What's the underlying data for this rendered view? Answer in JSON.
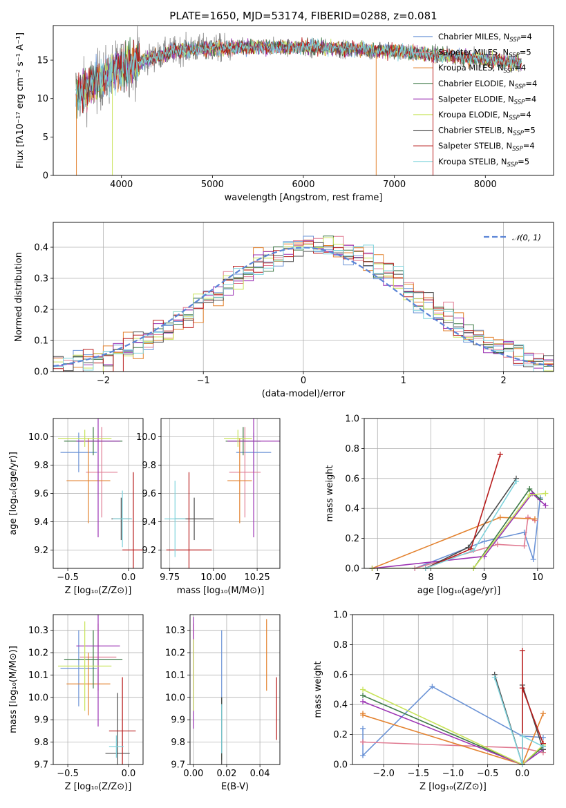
{
  "chart_data": [
    {
      "id": "spectrum",
      "type": "line",
      "title": "PLATE=1650, MJD=53174, FIBERID=0288, z=0.081",
      "xlabel": "wavelength [Angstrom, rest frame]",
      "ylabel": "Flux [fλ10⁻¹⁷ erg cm⁻² s⁻¹ A⁻¹]",
      "xlim": [
        3250,
        8750
      ],
      "ylim": [
        0,
        19.5
      ],
      "xticks": [
        4000,
        5000,
        6000,
        7000,
        8000
      ],
      "yticks": [
        0,
        5,
        10,
        15
      ],
      "grid": false,
      "legend_position": "upper-right",
      "data_range": [
        3500,
        8400
      ],
      "legend": [
        {
          "name": "Chabrier MILES, N",
          "sub": "SSP",
          "sup": "",
          "tail": "=4",
          "color": "#6b93d6"
        },
        {
          "name": "Salpeter MILES, N",
          "sub": "SSP",
          "sup": "",
          "tail": "=5",
          "color": "#e07a91"
        },
        {
          "name": "Kroupa MILES, N",
          "sub": "SSP",
          "sup": "",
          "tail": "=4",
          "color": "#e3822f"
        },
        {
          "name": "Chabrier ELODIE, N",
          "sub": "SSP",
          "sup": "",
          "tail": "=4",
          "color": "#3d7a46"
        },
        {
          "name": "Salpeter ELODIE, N",
          "sub": "SSP",
          "sup": "",
          "tail": "=4",
          "color": "#9b32b3"
        },
        {
          "name": "Kroupa ELODIE, N",
          "sub": "SSP",
          "sup": "",
          "tail": "=4",
          "color": "#c8e35a"
        },
        {
          "name": "Chabrier STELIB, N",
          "sub": "SSP",
          "sup": "",
          "tail": "=5",
          "color": "#4a4a4a"
        },
        {
          "name": "Salpeter STELIB, N",
          "sub": "SSP",
          "sup": "",
          "tail": "=4",
          "color": "#b81c1c"
        },
        {
          "name": "Kroupa STELIB, N",
          "sub": "SSP",
          "sup": "",
          "tail": "=5",
          "color": "#7fd3dc"
        }
      ],
      "observed_color": "#808080"
    },
    {
      "id": "residuals",
      "type": "histogram",
      "xlabel": "(data-model)/error",
      "ylabel": "Normed distribution",
      "xlim": [
        -2.5,
        2.5
      ],
      "ylim": [
        0,
        0.48
      ],
      "xticks": [
        -2,
        -1,
        0,
        1,
        2
      ],
      "yticks": [
        0.0,
        0.1,
        0.2,
        0.3,
        0.4
      ],
      "grid": true,
      "bin_width": 0.1,
      "gaussian": {
        "name": "𝒩(0, 1)",
        "color": "#5b84d6"
      },
      "series_colors": [
        "#6b93d6",
        "#e07a91",
        "#e3822f",
        "#3d7a46",
        "#9b32b3",
        "#c8e35a",
        "#4a4a4a",
        "#b81c1c",
        "#7fd3dc"
      ]
    },
    {
      "id": "z_age",
      "type": "errorbar",
      "xlabel": "Z [log₁₀(Z/Z⊙)]",
      "ylabel": "age  [log₁₀(age/yr)]",
      "xlim": [
        -0.62,
        0.12
      ],
      "ylim": [
        9.07,
        10.13
      ],
      "xticks": [
        -0.5,
        0.0
      ],
      "yticks": [
        9.2,
        9.4,
        9.6,
        9.8,
        10.0
      ],
      "grid": true,
      "points": [
        {
          "x": -0.41,
          "y": 9.89,
          "xerr": 0.15,
          "yerr": 0.14,
          "color": "#6b93d6"
        },
        {
          "x": -0.22,
          "y": 9.75,
          "xerr": 0.13,
          "yerr": 0.32,
          "color": "#e07a91"
        },
        {
          "x": -0.33,
          "y": 9.69,
          "xerr": 0.18,
          "yerr": 0.3,
          "color": "#e3822f"
        },
        {
          "x": -0.29,
          "y": 9.97,
          "xerr": 0.24,
          "yerr": 0.1,
          "color": "#3d7a46"
        },
        {
          "x": -0.25,
          "y": 9.97,
          "xerr": 0.18,
          "yerr": 0.68,
          "color": "#9b32b3"
        },
        {
          "x": -0.36,
          "y": 9.99,
          "xerr": 0.22,
          "yerr": 0.06,
          "color": "#c8e35a"
        },
        {
          "x": -0.06,
          "y": 9.42,
          "xerr": 0.08,
          "yerr": 0.15,
          "color": "#4a4a4a"
        },
        {
          "x": 0.04,
          "y": 9.2,
          "xerr": 0.09,
          "yerr": 0.55,
          "color": "#b81c1c"
        },
        {
          "x": -0.05,
          "y": 9.42,
          "xerr": 0.08,
          "yerr": 0.2,
          "color": "#7fd3dc"
        }
      ]
    },
    {
      "id": "mass_age",
      "type": "errorbar",
      "xlabel": "mass [log₁₀(M/M⊙)]",
      "ylabel": "",
      "xlim": [
        9.7,
        10.38
      ],
      "ylim": [
        9.07,
        10.13
      ],
      "xticks": [
        9.75,
        10.0,
        10.25
      ],
      "yticks": [
        9.2,
        9.4,
        9.6,
        9.8,
        10.0
      ],
      "grid": true,
      "points": [
        {
          "x": 10.23,
          "y": 9.89,
          "xerr": 0.1,
          "yerr": 0.14,
          "color": "#6b93d6"
        },
        {
          "x": 10.18,
          "y": 9.75,
          "xerr": 0.09,
          "yerr": 0.32,
          "color": "#e07a91"
        },
        {
          "x": 10.15,
          "y": 9.69,
          "xerr": 0.07,
          "yerr": 0.3,
          "color": "#e3822f"
        },
        {
          "x": 10.17,
          "y": 9.97,
          "xerr": 0.1,
          "yerr": 0.1,
          "color": "#3d7a46"
        },
        {
          "x": 10.23,
          "y": 9.97,
          "xerr": 0.15,
          "yerr": 0.68,
          "color": "#9b32b3"
        },
        {
          "x": 10.14,
          "y": 9.99,
          "xerr": 0.08,
          "yerr": 0.06,
          "color": "#c8e35a"
        },
        {
          "x": 9.89,
          "y": 9.42,
          "xerr": 0.11,
          "yerr": 0.15,
          "color": "#4a4a4a"
        },
        {
          "x": 9.86,
          "y": 9.2,
          "xerr": 0.13,
          "yerr": 0.55,
          "color": "#b81c1c"
        },
        {
          "x": 9.78,
          "y": 9.42,
          "xerr": 0.06,
          "yerr": 0.27,
          "color": "#7fd3dc"
        }
      ]
    },
    {
      "id": "age_weight",
      "type": "line",
      "xlabel": "age  [log₁₀(age/yr)]",
      "ylabel": "mass weight",
      "xlim": [
        6.75,
        10.3
      ],
      "ylim": [
        0,
        1
      ],
      "xticks": [
        7,
        8,
        9,
        10
      ],
      "yticks": [
        0.0,
        0.2,
        0.4,
        0.6,
        0.8,
        1.0
      ],
      "grid": true,
      "series": [
        {
          "name": "Chabrier MILES",
          "color": "#6b93d6",
          "x": [
            7.7,
            9.0,
            9.75,
            9.92,
            10.05
          ],
          "y": [
            0.0,
            0.18,
            0.24,
            0.06,
            0.47
          ]
        },
        {
          "name": "Salpeter MILES",
          "color": "#e07a91",
          "x": [
            7.7,
            9.25,
            9.75,
            9.82,
            9.95
          ],
          "y": [
            0.0,
            0.16,
            0.15,
            0.34,
            0.32
          ]
        },
        {
          "name": "Kroupa MILES",
          "color": "#e3822f",
          "x": [
            6.9,
            9.3,
            9.95
          ],
          "y": [
            0.0,
            0.34,
            0.33
          ]
        },
        {
          "name": "Chabrier ELODIE",
          "color": "#3d7a46",
          "x": [
            6.9,
            8.8,
            9.85,
            10.05
          ],
          "y": [
            0.0,
            0.0,
            0.53,
            0.46
          ]
        },
        {
          "name": "Salpeter ELODIE",
          "color": "#9b32b3",
          "x": [
            6.9,
            9.0,
            9.9,
            10.15
          ],
          "y": [
            0.0,
            0.08,
            0.5,
            0.42
          ]
        },
        {
          "name": "Kroupa ELODIE",
          "color": "#c8e35a",
          "x": [
            6.9,
            8.8,
            9.85,
            10.15
          ],
          "y": [
            0.0,
            0.0,
            0.49,
            0.5
          ]
        },
        {
          "name": "Chabrier STELIB",
          "color": "#4a4a4a",
          "x": [
            7.9,
            8.7,
            9.6
          ],
          "y": [
            0.0,
            0.14,
            0.6
          ]
        },
        {
          "name": "Salpeter STELIB",
          "color": "#b81c1c",
          "x": [
            7.9,
            8.75,
            9.3
          ],
          "y": [
            0.0,
            0.13,
            0.76
          ]
        },
        {
          "name": "Kroupa STELIB",
          "color": "#7fd3dc",
          "x": [
            7.9,
            8.8,
            9.6
          ],
          "y": [
            0.0,
            0.12,
            0.58
          ]
        }
      ]
    },
    {
      "id": "z_mass",
      "type": "errorbar",
      "xlabel": "Z [log₁₀(Z/Z⊙)]",
      "ylabel": "mass [log₁₀(M/M⊙)]",
      "xlim": [
        -0.62,
        0.12
      ],
      "ylim": [
        9.7,
        10.37
      ],
      "xticks": [
        -0.5,
        0.0
      ],
      "yticks": [
        9.7,
        9.8,
        9.9,
        10.0,
        10.1,
        10.2,
        10.3
      ],
      "grid": true,
      "points": [
        {
          "x": -0.41,
          "y": 10.13,
          "xerr": 0.15,
          "yerr": 0.17,
          "color": "#6b93d6"
        },
        {
          "x": -0.25,
          "y": 10.18,
          "xerr": 0.15,
          "yerr": 0.15,
          "color": "#e07a91"
        },
        {
          "x": -0.33,
          "y": 10.06,
          "xerr": 0.18,
          "yerr": 0.14,
          "color": "#e3822f"
        },
        {
          "x": -0.29,
          "y": 10.17,
          "xerr": 0.24,
          "yerr": 0.13,
          "color": "#3d7a46"
        },
        {
          "x": -0.25,
          "y": 10.23,
          "xerr": 0.18,
          "yerr": 0.36,
          "color": "#9b32b3"
        },
        {
          "x": -0.36,
          "y": 10.14,
          "xerr": 0.22,
          "yerr": 0.2,
          "color": "#c8e35a"
        },
        {
          "x": -0.09,
          "y": 9.75,
          "xerr": 0.1,
          "yerr": 0.27,
          "color": "#4a4a4a"
        },
        {
          "x": -0.05,
          "y": 9.85,
          "xerr": 0.11,
          "yerr": 0.24,
          "color": "#b81c1c"
        },
        {
          "x": -0.1,
          "y": 9.78,
          "xerr": 0.06,
          "yerr": 0.05,
          "color": "#7fd3dc"
        }
      ]
    },
    {
      "id": "ebv_mass",
      "type": "errorbar",
      "xlabel": "E(B-V)",
      "ylabel": "",
      "xlim": [
        -0.002,
        0.052
      ],
      "ylim": [
        9.7,
        10.37
      ],
      "xticks": [
        0.0,
        0.02,
        0.04
      ],
      "yticks": [
        9.7,
        9.8,
        9.9,
        10.0,
        10.1,
        10.2,
        10.3
      ],
      "grid": true,
      "points": [
        {
          "x": 0.017,
          "y": 10.13,
          "xerr": 0,
          "yerr": 0.17,
          "color": "#6b93d6"
        },
        {
          "x": 0.0,
          "y": 10.18,
          "xerr": 0,
          "yerr": 0.15,
          "color": "#e07a91"
        },
        {
          "x": 0.044,
          "y": 10.19,
          "xerr": 0,
          "yerr": 0.16,
          "color": "#e3822f"
        },
        {
          "x": 0.017,
          "y": 9.86,
          "xerr": 0,
          "yerr": 0.14,
          "color": "#3d7a46"
        },
        {
          "x": 0.0,
          "y": 10.11,
          "xerr": 0,
          "yerr": 0.25,
          "color": "#9b32b3"
        },
        {
          "x": 0.0,
          "y": 10.1,
          "xerr": 0,
          "yerr": 0.16,
          "color": "#c8e35a"
        },
        {
          "x": 0.017,
          "y": 9.85,
          "xerr": 0,
          "yerr": 0.15,
          "color": "#4a4a4a"
        },
        {
          "x": 0.05,
          "y": 9.95,
          "xerr": 0,
          "yerr": 0.14,
          "color": "#b81c1c"
        },
        {
          "x": 0.017,
          "y": 9.86,
          "xerr": 0,
          "yerr": 0.11,
          "color": "#7fd3dc"
        }
      ]
    },
    {
      "id": "z_weight",
      "type": "line",
      "xlabel": "Z [log₁₀(Z/Z⊙)]",
      "ylabel": "mass weight",
      "xlim": [
        -2.45,
        0.45
      ],
      "ylim": [
        0,
        1
      ],
      "xticks": [
        -2.0,
        -1.5,
        -1.0,
        -0.5,
        0.0
      ],
      "yticks": [
        0.0,
        0.2,
        0.4,
        0.6,
        0.8,
        1.0
      ],
      "grid": true,
      "series": [
        {
          "name": "Chabrier MILES",
          "color": "#6b93d6",
          "x": [
            -2.3,
            -2.3,
            -1.3,
            0.0,
            0.3
          ],
          "y": [
            0.24,
            0.06,
            0.52,
            0.19,
            0.18
          ]
        },
        {
          "name": "Salpeter MILES",
          "color": "#e07a91",
          "x": [
            -2.3,
            -2.3,
            0.0,
            0.3
          ],
          "y": [
            0.15,
            0.15,
            0.11,
            0.08
          ]
        },
        {
          "name": "Kroupa MILES",
          "color": "#e3822f",
          "x": [
            -2.3,
            -2.3,
            0.0,
            0.3
          ],
          "y": [
            0.34,
            0.33,
            0.0,
            0.34
          ]
        },
        {
          "name": "Chabrier ELODIE",
          "color": "#3d7a46",
          "x": [
            -2.3,
            0.0,
            0.3
          ],
          "y": [
            0.46,
            0.0,
            0.12
          ]
        },
        {
          "name": "Salpeter ELODIE",
          "color": "#9b32b3",
          "x": [
            -2.3,
            0.0,
            0.3
          ],
          "y": [
            0.42,
            0.0,
            0.1
          ]
        },
        {
          "name": "Kroupa ELODIE",
          "color": "#c8e35a",
          "x": [
            -2.3,
            0.0,
            0.3
          ],
          "y": [
            0.5,
            0.0,
            0.13
          ]
        },
        {
          "name": "Chabrier STELIB",
          "color": "#4a4a4a",
          "x": [
            -0.4,
            0.0,
            0.0,
            0.3
          ],
          "y": [
            0.6,
            0.0,
            0.53,
            0.1
          ]
        },
        {
          "name": "Salpeter STELIB",
          "color": "#b81c1c",
          "x": [
            0.0,
            0.0,
            0.0,
            0.3
          ],
          "y": [
            0.76,
            0.0,
            0.51,
            0.14
          ]
        },
        {
          "name": "Kroupa STELIB",
          "color": "#7fd3dc",
          "x": [
            -0.4,
            0.0,
            0.0,
            0.3
          ],
          "y": [
            0.58,
            0.0,
            0.19,
            0.12
          ]
        }
      ]
    }
  ]
}
